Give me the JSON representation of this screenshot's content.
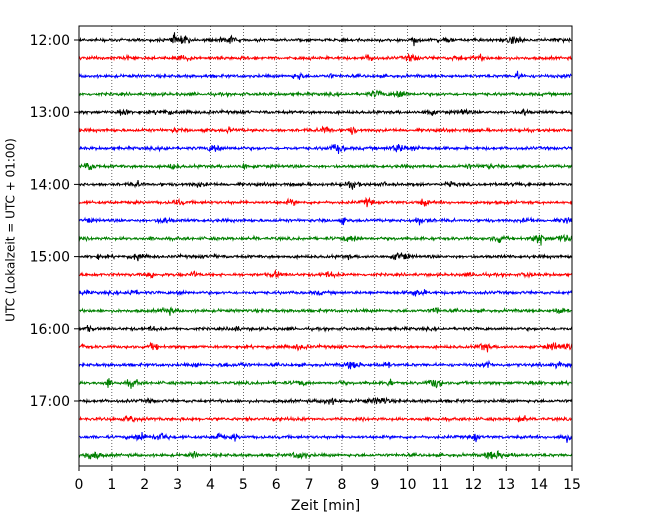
{
  "chart_data": {
    "type": "line",
    "title": "",
    "xlabel": "Zeit  [min]",
    "ylabel": "UTC (Lokalzeit = UTC + 01:00)",
    "xlim": [
      0,
      15
    ],
    "x_ticks": [
      0,
      1,
      2,
      3,
      4,
      5,
      6,
      7,
      8,
      9,
      10,
      11,
      12,
      13,
      14,
      15
    ],
    "y_tick_labels": [
      "12:00",
      "13:00",
      "14:00",
      "15:00",
      "16:00",
      "17:00"
    ],
    "traces_per_hour": 4,
    "minutes_per_trace": 15,
    "grid": "vertical dotted lines at each minute",
    "series": [
      {
        "start": "12:00",
        "color": "#000000"
      },
      {
        "start": "12:15",
        "color": "#ff0000"
      },
      {
        "start": "12:30",
        "color": "#0000ff"
      },
      {
        "start": "12:45",
        "color": "#008000"
      },
      {
        "start": "13:00",
        "color": "#000000"
      },
      {
        "start": "13:15",
        "color": "#ff0000"
      },
      {
        "start": "13:30",
        "color": "#0000ff"
      },
      {
        "start": "13:45",
        "color": "#008000"
      },
      {
        "start": "14:00",
        "color": "#000000"
      },
      {
        "start": "14:15",
        "color": "#ff0000"
      },
      {
        "start": "14:30",
        "color": "#0000ff"
      },
      {
        "start": "14:45",
        "color": "#008000"
      },
      {
        "start": "15:00",
        "color": "#000000"
      },
      {
        "start": "15:15",
        "color": "#ff0000"
      },
      {
        "start": "15:30",
        "color": "#0000ff"
      },
      {
        "start": "15:45",
        "color": "#008000"
      },
      {
        "start": "16:00",
        "color": "#000000"
      },
      {
        "start": "16:15",
        "color": "#ff0000"
      },
      {
        "start": "16:30",
        "color": "#0000ff"
      },
      {
        "start": "16:45",
        "color": "#008000"
      },
      {
        "start": "17:00",
        "color": "#000000"
      },
      {
        "start": "17:15",
        "color": "#ff0000"
      },
      {
        "start": "17:30",
        "color": "#0000ff"
      },
      {
        "start": "17:45",
        "color": "#008000"
      }
    ]
  }
}
